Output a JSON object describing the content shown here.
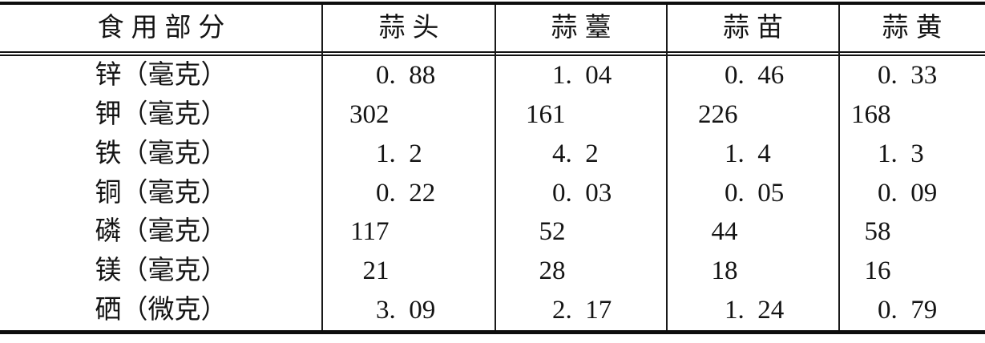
{
  "table": {
    "header": [
      "食用部分",
      "蒜头",
      "蒜薹",
      "蒜苗",
      "蒜黄"
    ],
    "rows": [
      {
        "label": "锌（毫克）",
        "values": [
          "0.88",
          "1.04",
          "0.46",
          "0.33"
        ]
      },
      {
        "label": "钾（毫克）",
        "values": [
          "302",
          "161",
          "226",
          "168"
        ]
      },
      {
        "label": "铁（毫克）",
        "values": [
          "1.2",
          "4.2",
          "1.4",
          "1.3"
        ]
      },
      {
        "label": "铜（毫克）",
        "values": [
          "0.22",
          "0.03",
          "0.05",
          "0.09"
        ]
      },
      {
        "label": "磷（毫克）",
        "values": [
          "117",
          "52",
          "44",
          "58"
        ]
      },
      {
        "label": "镁（毫克）",
        "values": [
          "21",
          "28",
          "18",
          "16"
        ]
      },
      {
        "label": "硒（微克）",
        "values": [
          "3.09",
          "2.17",
          "1.24",
          "0.79"
        ]
      }
    ]
  },
  "chart_data": {
    "type": "table",
    "columns": [
      "食用部分",
      "蒜头",
      "蒜薹",
      "蒜苗",
      "蒜黄"
    ],
    "rows": [
      [
        "锌（毫克）",
        0.88,
        1.04,
        0.46,
        0.33
      ],
      [
        "钾（毫克）",
        302,
        161,
        226,
        168
      ],
      [
        "铁（毫克）",
        1.2,
        4.2,
        1.4,
        1.3
      ],
      [
        "铜（毫克）",
        0.22,
        0.03,
        0.05,
        0.09
      ],
      [
        "磷（毫克）",
        117,
        52,
        44,
        58
      ],
      [
        "镁（毫克）",
        21,
        28,
        18,
        16
      ],
      [
        "硒（微克）",
        3.09,
        2.17,
        1.24,
        0.79
      ]
    ]
  },
  "colors": {
    "ink": "#141414",
    "rule": "#0d0d0d",
    "paper": "#ffffff"
  }
}
